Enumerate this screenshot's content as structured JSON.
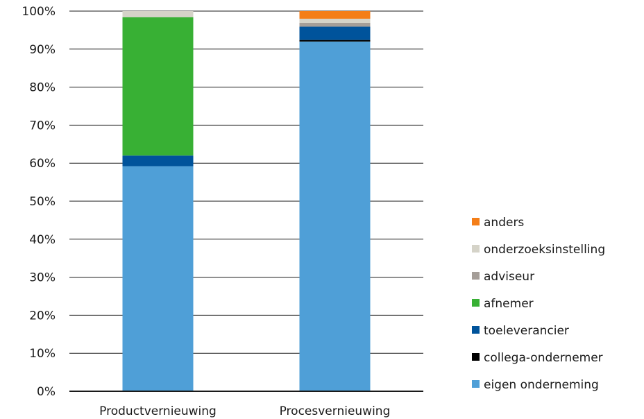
{
  "chart_data": {
    "type": "bar",
    "stacked": true,
    "categories": [
      "Productvernieuwing",
      "Procesvernieuwing"
    ],
    "ylim": [
      0,
      100
    ],
    "yticks": [
      0,
      10,
      20,
      30,
      40,
      50,
      60,
      70,
      80,
      90,
      100
    ],
    "ytick_labels": [
      "0%",
      "10%",
      "20%",
      "30%",
      "40%",
      "50%",
      "60%",
      "70%",
      "80%",
      "90%",
      "100%"
    ],
    "grid": true,
    "legend_position": "right",
    "series": [
      {
        "name": "eigen onderneming",
        "color": "#4f9fd7",
        "values": [
          59.2,
          92.0
        ]
      },
      {
        "name": "collega-ondernemer",
        "color": "#000000",
        "values": [
          0.0,
          0.4
        ]
      },
      {
        "name": "toeleverancier",
        "color": "#00539b",
        "values": [
          2.8,
          3.5
        ]
      },
      {
        "name": "afnemer",
        "color": "#38b034",
        "values": [
          36.4,
          0.0
        ]
      },
      {
        "name": "adviseur",
        "color": "#a59e98",
        "values": [
          0.0,
          1.0
        ]
      },
      {
        "name": "onderzoeksinstelling",
        "color": "#d5d3c8",
        "values": [
          1.6,
          1.1
        ]
      },
      {
        "name": "anders",
        "color": "#f47e18",
        "values": [
          0.0,
          2.0
        ]
      }
    ]
  }
}
